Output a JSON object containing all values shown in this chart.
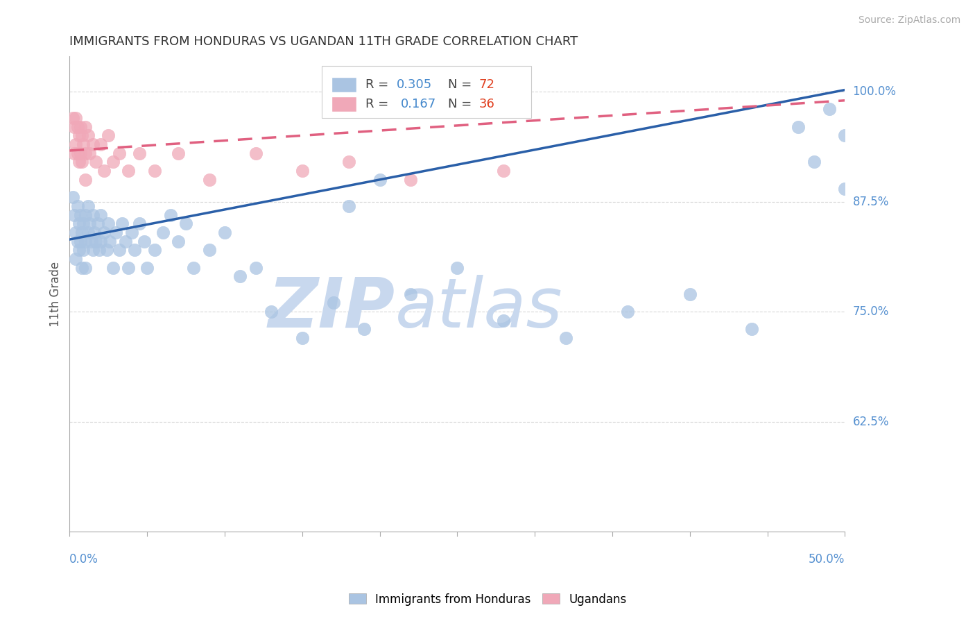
{
  "title": "IMMIGRANTS FROM HONDURAS VS UGANDAN 11TH GRADE CORRELATION CHART",
  "source": "Source: ZipAtlas.com",
  "ylabel": "11th Grade",
  "ylabel_right_ticks": [
    "100.0%",
    "87.5%",
    "75.0%",
    "62.5%"
  ],
  "ylabel_right_vals": [
    1.0,
    0.875,
    0.75,
    0.625
  ],
  "xlim": [
    0.0,
    0.5
  ],
  "ylim": [
    0.5,
    1.04
  ],
  "legend_blue_r": "R = 0.305",
  "legend_blue_n": "N = 72",
  "legend_pink_r": "R =  0.167",
  "legend_pink_n": "N = 36",
  "blue_color": "#aac4e2",
  "blue_line_color": "#2a5fa8",
  "pink_color": "#f0a8b8",
  "pink_line_color": "#e06080",
  "blue_scatter_x": [
    0.002,
    0.003,
    0.004,
    0.004,
    0.005,
    0.005,
    0.006,
    0.006,
    0.007,
    0.007,
    0.008,
    0.008,
    0.009,
    0.009,
    0.01,
    0.01,
    0.01,
    0.012,
    0.012,
    0.013,
    0.014,
    0.015,
    0.015,
    0.016,
    0.017,
    0.018,
    0.019,
    0.02,
    0.02,
    0.022,
    0.024,
    0.025,
    0.026,
    0.028,
    0.03,
    0.032,
    0.034,
    0.036,
    0.038,
    0.04,
    0.042,
    0.045,
    0.048,
    0.05,
    0.055,
    0.06,
    0.065,
    0.07,
    0.075,
    0.08,
    0.09,
    0.1,
    0.11,
    0.12,
    0.13,
    0.15,
    0.17,
    0.19,
    0.22,
    0.25,
    0.28,
    0.32,
    0.36,
    0.4,
    0.44,
    0.47,
    0.48,
    0.49,
    0.5,
    0.5,
    0.18,
    0.2
  ],
  "blue_scatter_y": [
    0.88,
    0.86,
    0.84,
    0.81,
    0.87,
    0.83,
    0.85,
    0.82,
    0.86,
    0.83,
    0.84,
    0.8,
    0.85,
    0.82,
    0.86,
    0.83,
    0.8,
    0.87,
    0.84,
    0.85,
    0.83,
    0.86,
    0.82,
    0.84,
    0.83,
    0.85,
    0.82,
    0.86,
    0.83,
    0.84,
    0.82,
    0.85,
    0.83,
    0.8,
    0.84,
    0.82,
    0.85,
    0.83,
    0.8,
    0.84,
    0.82,
    0.85,
    0.83,
    0.8,
    0.82,
    0.84,
    0.86,
    0.83,
    0.85,
    0.8,
    0.82,
    0.84,
    0.79,
    0.8,
    0.75,
    0.72,
    0.76,
    0.73,
    0.77,
    0.8,
    0.74,
    0.72,
    0.75,
    0.77,
    0.73,
    0.96,
    0.92,
    0.98,
    0.95,
    0.89,
    0.87,
    0.9
  ],
  "pink_scatter_x": [
    0.002,
    0.003,
    0.003,
    0.004,
    0.004,
    0.005,
    0.005,
    0.006,
    0.006,
    0.007,
    0.007,
    0.008,
    0.008,
    0.009,
    0.01,
    0.01,
    0.01,
    0.012,
    0.013,
    0.015,
    0.017,
    0.02,
    0.022,
    0.025,
    0.028,
    0.032,
    0.038,
    0.045,
    0.055,
    0.07,
    0.09,
    0.12,
    0.15,
    0.18,
    0.22,
    0.28
  ],
  "pink_scatter_y": [
    0.97,
    0.96,
    0.93,
    0.97,
    0.94,
    0.96,
    0.93,
    0.95,
    0.92,
    0.96,
    0.93,
    0.95,
    0.92,
    0.94,
    0.96,
    0.93,
    0.9,
    0.95,
    0.93,
    0.94,
    0.92,
    0.94,
    0.91,
    0.95,
    0.92,
    0.93,
    0.91,
    0.93,
    0.91,
    0.93,
    0.9,
    0.93,
    0.91,
    0.92,
    0.9,
    0.91
  ],
  "background_color": "#ffffff",
  "grid_color": "#c8c8c8",
  "watermark_zip": "ZIP",
  "watermark_atlas": "atlas",
  "watermark_color": "#c8d8ee"
}
